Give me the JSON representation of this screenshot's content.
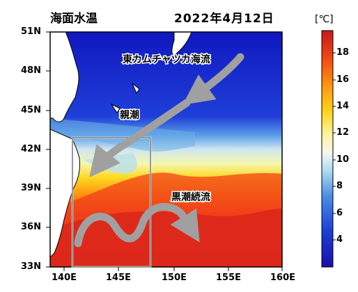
{
  "title": "海面水温",
  "date": "2022年4月12日",
  "colorbar": {
    "unit": "[℃]",
    "ticks": [
      "18",
      "16",
      "14",
      "12",
      "10",
      "8",
      "6",
      "4"
    ]
  },
  "axes": {
    "lat": [
      "51N",
      "48N",
      "45N",
      "42N",
      "39N",
      "36N",
      "33N"
    ],
    "lon": [
      "140E",
      "145E",
      "150E",
      "155E",
      "160E"
    ]
  },
  "currents": {
    "kamchatka": "東カムチャツカ海流",
    "oyashio": "親潮",
    "kuroshio": "黒潮続流"
  },
  "colors": {
    "cold": "#2233c8",
    "warm": "#e52818",
    "arrow": "#a0a0a0"
  }
}
